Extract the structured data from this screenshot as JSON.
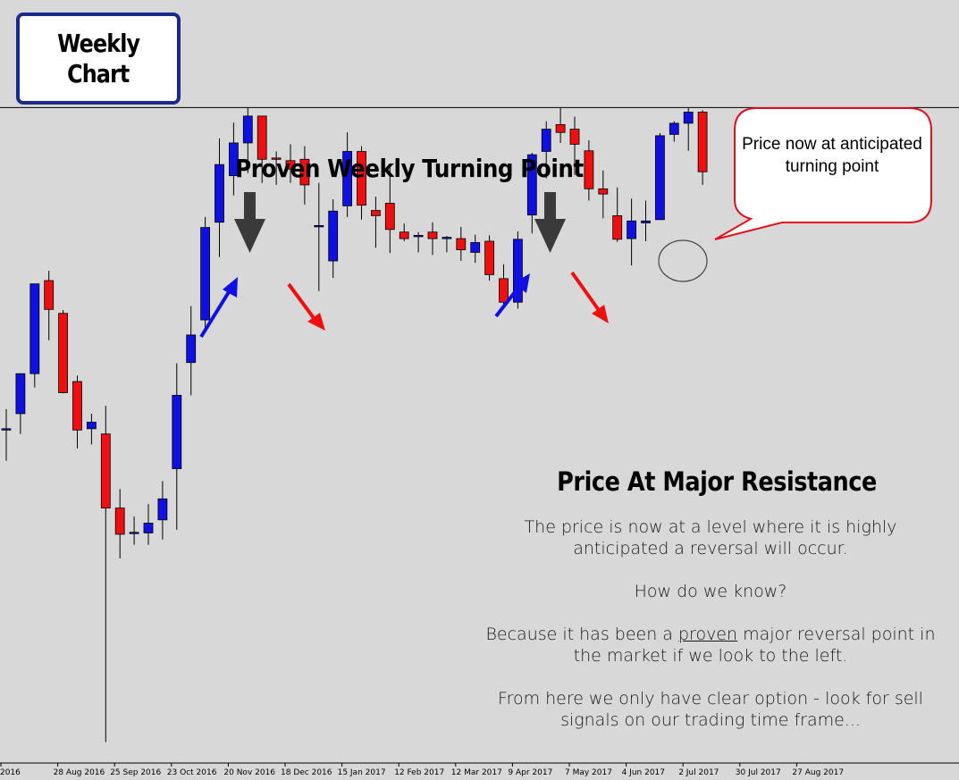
{
  "badge": {
    "line1": "Weekly",
    "line2": "Chart"
  },
  "headings": {
    "turning_point": "Proven Weekly Turning Point",
    "resistance": "Price At Major Resistance"
  },
  "callout": {
    "text": "Price now at anticipated turning point"
  },
  "paragraphs": {
    "p1": "The price is now at a level where it is highly anticipated a reversal will occur.",
    "p2": "How do we know?",
    "p3_before": "Because it has been a ",
    "p3_underlined": "proven",
    "p3_after": " major reversal point in the market if we look to the left.",
    "p4": "From here we only have clear option - look for sell signals on our trading time frame..."
  },
  "colors": {
    "background": "#d8d8d8",
    "bull": "#1010e0",
    "bear": "#ee1010",
    "callout_border": "#e01020",
    "badge_border": "#1a2a8a",
    "down_arrow": "#3a3a3a",
    "level_line": "#000000"
  },
  "chart_data": {
    "type": "candlestick",
    "timeframe": "weekly",
    "x_tick_labels": [
      "2016",
      "28 Aug 2016",
      "25 Sep 2016",
      "23 Oct 2016",
      "20 Nov 2016",
      "18 Dec 2016",
      "15 Jan 2017",
      "12 Feb 2017",
      "12 Mar 2017",
      "9 Apr 2017",
      "7 May 2017",
      "4 Jun 2017",
      "2 Jul 2017",
      "30 Jul 2017",
      "27 Aug 2017"
    ],
    "resistance_level": 100,
    "ylim": [
      0,
      104
    ],
    "candles": [
      {
        "o": 50.8,
        "h": 54.0,
        "l": 46.1,
        "c": 51.0
      },
      {
        "o": 53.3,
        "h": 59.0,
        "l": 50.2,
        "c": 59.4
      },
      {
        "o": 59.4,
        "h": 73.0,
        "l": 57.3,
        "c": 73.1
      },
      {
        "o": 73.6,
        "h": 75.1,
        "l": 64.5,
        "c": 69.2
      },
      {
        "o": 68.6,
        "h": 69.1,
        "l": 56.4,
        "c": 56.5
      },
      {
        "o": 58.2,
        "h": 59.1,
        "l": 48.0,
        "c": 50.8
      },
      {
        "o": 51.0,
        "h": 53.3,
        "l": 48.6,
        "c": 52.0
      },
      {
        "o": 50.2,
        "h": 54.5,
        "l": 3.2,
        "c": 38.9
      },
      {
        "o": 38.9,
        "h": 41.8,
        "l": 31.2,
        "c": 34.9
      },
      {
        "o": 35.1,
        "h": 37.6,
        "l": 33.3,
        "c": 35.2
      },
      {
        "o": 35.1,
        "h": 39.5,
        "l": 33.3,
        "c": 36.6
      },
      {
        "o": 37.1,
        "h": 43.0,
        "l": 34.1,
        "c": 40.3
      },
      {
        "o": 44.9,
        "h": 61.0,
        "l": 35.6,
        "c": 56.1
      },
      {
        "o": 61.1,
        "h": 69.7,
        "l": 56.1,
        "c": 65.3
      },
      {
        "o": 67.6,
        "h": 83.3,
        "l": 65.8,
        "c": 81.7
      },
      {
        "o": 82.5,
        "h": 95.3,
        "l": 77.2,
        "c": 91.3
      },
      {
        "o": 89.6,
        "h": 97.7,
        "l": 86.6,
        "c": 94.6
      },
      {
        "o": 94.6,
        "h": 100.0,
        "l": 90.0,
        "c": 98.7
      },
      {
        "o": 98.7,
        "h": 98.7,
        "l": 88.5,
        "c": 92.1
      },
      {
        "o": 92.3,
        "h": 93.3,
        "l": 88.2,
        "c": 92.1
      },
      {
        "o": 91.9,
        "h": 94.4,
        "l": 88.5,
        "c": 90.6
      },
      {
        "o": 92.1,
        "h": 94.1,
        "l": 85.2,
        "c": 88.2
      },
      {
        "o": 82.0,
        "h": 88.5,
        "l": 72.0,
        "c": 82.0
      },
      {
        "o": 76.6,
        "h": 86.0,
        "l": 74.0,
        "c": 84.2
      },
      {
        "o": 85.0,
        "h": 96.2,
        "l": 83.3,
        "c": 93.3
      },
      {
        "o": 93.3,
        "h": 94.1,
        "l": 82.9,
        "c": 85.1
      },
      {
        "o": 84.3,
        "h": 86.4,
        "l": 78.6,
        "c": 83.5
      },
      {
        "o": 85.4,
        "h": 91.3,
        "l": 77.8,
        "c": 81.4
      },
      {
        "o": 81.0,
        "h": 82.3,
        "l": 79.6,
        "c": 80.0
      },
      {
        "o": 80.5,
        "h": 81.0,
        "l": 77.9,
        "c": 80.5
      },
      {
        "o": 81.0,
        "h": 82.5,
        "l": 77.5,
        "c": 80.0
      },
      {
        "o": 80.2,
        "h": 80.4,
        "l": 77.9,
        "c": 80.2
      },
      {
        "o": 80.0,
        "h": 81.8,
        "l": 76.6,
        "c": 78.3
      },
      {
        "o": 77.9,
        "h": 80.6,
        "l": 76.3,
        "c": 79.4
      },
      {
        "o": 79.6,
        "h": 80.5,
        "l": 73.6,
        "c": 74.5
      },
      {
        "o": 73.9,
        "h": 76.1,
        "l": 69.9,
        "c": 70.3
      },
      {
        "o": 70.3,
        "h": 81.1,
        "l": 69.3,
        "c": 79.9
      },
      {
        "o": 83.6,
        "h": 93.1,
        "l": 80.8,
        "c": 92.8
      },
      {
        "o": 93.3,
        "h": 97.9,
        "l": 89.2,
        "c": 96.7
      },
      {
        "o": 97.4,
        "h": 100.0,
        "l": 94.6,
        "c": 96.2
      },
      {
        "o": 96.7,
        "h": 98.6,
        "l": 89.7,
        "c": 94.4
      },
      {
        "o": 93.4,
        "h": 95.0,
        "l": 85.8,
        "c": 87.6
      },
      {
        "o": 87.6,
        "h": 90.4,
        "l": 83.1,
        "c": 86.8
      },
      {
        "o": 83.5,
        "h": 87.8,
        "l": 79.5,
        "c": 79.9
      },
      {
        "o": 80.0,
        "h": 86.1,
        "l": 75.9,
        "c": 82.7
      },
      {
        "o": 82.4,
        "h": 85.8,
        "l": 79.6,
        "c": 82.7
      },
      {
        "o": 82.9,
        "h": 96.1,
        "l": 82.9,
        "c": 95.7
      },
      {
        "o": 95.9,
        "h": 97.9,
        "l": 94.8,
        "c": 97.6
      },
      {
        "o": 97.6,
        "h": 99.9,
        "l": 93.4,
        "c": 99.3
      },
      {
        "o": 99.3,
        "h": 99.6,
        "l": 88.2,
        "c": 90.2
      }
    ]
  }
}
